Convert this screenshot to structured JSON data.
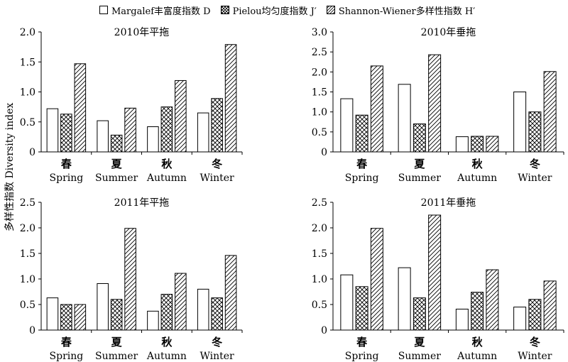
{
  "legend": {
    "margalef": "Margalef丰富度指数 D",
    "pielou": "Pielou均匀度指数 J′",
    "shannon": "Shannon-Wiener多样性指数 H′"
  },
  "y_axis_title": "多样性指数 Diversity index",
  "chart_data": [
    {
      "type": "bar",
      "title": "2010年平拖",
      "categories": [
        "春",
        "夏",
        "秋",
        "冬"
      ],
      "categories_en": [
        "Spring",
        "Summer",
        "Autumn",
        "Winter"
      ],
      "ylim": [
        0,
        2.0
      ],
      "yticks": [
        "0",
        "0.5",
        "1.0",
        "1.5",
        "2.0"
      ],
      "series": [
        {
          "name": "Margalef丰富度指数 D",
          "values": [
            0.72,
            0.52,
            0.42,
            0.65
          ]
        },
        {
          "name": "Pielou均匀度指数 J′",
          "values": [
            0.63,
            0.28,
            0.75,
            0.89
          ]
        },
        {
          "name": "Shannon-Wiener多样性指数 H′",
          "values": [
            1.47,
            0.73,
            1.19,
            1.79
          ]
        }
      ]
    },
    {
      "type": "bar",
      "title": "2010年垂拖",
      "categories": [
        "春",
        "夏",
        "秋",
        "冬"
      ],
      "categories_en": [
        "Spring",
        "Summer",
        "Autumn",
        "Winter"
      ],
      "ylim": [
        0,
        3.0
      ],
      "yticks": [
        "0",
        "0.5",
        "1.0",
        "1.5",
        "2.0",
        "2.5",
        "3.0"
      ],
      "series": [
        {
          "name": "Margalef丰富度指数 D",
          "values": [
            1.33,
            1.69,
            0.38,
            1.5
          ]
        },
        {
          "name": "Pielou均匀度指数 J′",
          "values": [
            0.92,
            0.7,
            0.39,
            1.0
          ]
        },
        {
          "name": "Shannon-Wiener多样性指数 H′",
          "values": [
            2.15,
            2.43,
            0.39,
            2.01
          ]
        }
      ]
    },
    {
      "type": "bar",
      "title": "2011年平拖",
      "categories": [
        "春",
        "夏",
        "秋",
        "冬"
      ],
      "categories_en": [
        "Spring",
        "Summer",
        "Autumn",
        "Winter"
      ],
      "ylim": [
        0,
        2.5
      ],
      "yticks": [
        "0",
        "0.5",
        "1.0",
        "1.5",
        "2.0",
        "2.5"
      ],
      "series": [
        {
          "name": "Margalef丰富度指数 D",
          "values": [
            0.63,
            0.91,
            0.37,
            0.8
          ]
        },
        {
          "name": "Pielou均匀度指数 J′",
          "values": [
            0.5,
            0.6,
            0.7,
            0.63
          ]
        },
        {
          "name": "Shannon-Wiener多样性指数 H′",
          "values": [
            0.5,
            1.99,
            1.11,
            1.46
          ]
        }
      ]
    },
    {
      "type": "bar",
      "title": "2011年垂拖",
      "categories": [
        "春",
        "夏",
        "秋",
        "冬"
      ],
      "categories_en": [
        "Spring",
        "Summer",
        "Autumn",
        "Winter"
      ],
      "ylim": [
        0,
        2.5
      ],
      "yticks": [
        "0",
        "0.5",
        "1.0",
        "1.5",
        "2.0",
        "2.5"
      ],
      "series": [
        {
          "name": "Margalef丰富度指数 D",
          "values": [
            1.08,
            1.22,
            0.41,
            0.45
          ]
        },
        {
          "name": "Pielou均匀度指数 J′",
          "values": [
            0.85,
            0.63,
            0.74,
            0.6
          ]
        },
        {
          "name": "Shannon-Wiener多样性指数 H′",
          "values": [
            1.99,
            2.25,
            1.18,
            0.96
          ]
        }
      ]
    }
  ]
}
